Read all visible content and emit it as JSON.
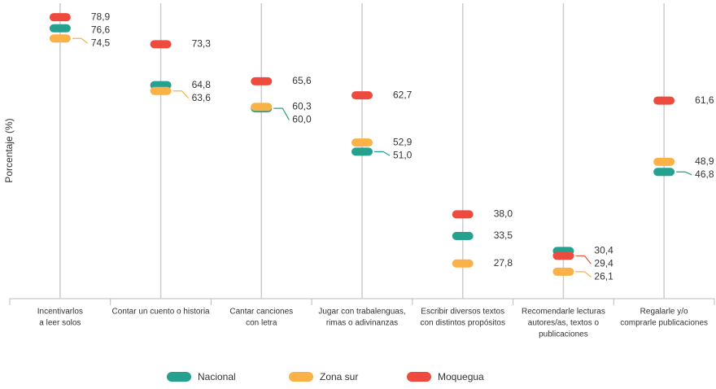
{
  "chart_data": {
    "type": "dotplot",
    "y_label": "Porcentaje (%)",
    "categories": [
      [
        "Incentivarlos",
        "a leer solos"
      ],
      [
        "Contar un cuento o historia"
      ],
      [
        "Cantar canciones",
        "con letra"
      ],
      [
        "Jugar con trabalenguas,",
        "rimas o adivinanzas"
      ],
      [
        "Escribir diversos textos",
        "con distintos propósitos"
      ],
      [
        "Recomendarle lecturas",
        "autores/as, textos o",
        "publicaciones"
      ],
      [
        "Regalarle y/o",
        "comprarle publicaciones"
      ]
    ],
    "series": [
      {
        "name": "Nacional",
        "color": "#26a08f",
        "values": [
          76.6,
          64.8,
          60.0,
          51.0,
          33.5,
          30.4,
          46.8
        ],
        "value_labels": [
          "76,6",
          "64,8",
          "60,0",
          "51,0",
          "33,5",
          "30,4",
          "46,8"
        ]
      },
      {
        "name": "Zona sur",
        "color": "#f9b148",
        "values": [
          74.5,
          63.6,
          60.3,
          52.9,
          27.8,
          26.1,
          48.9
        ],
        "value_labels": [
          "74,5",
          "63,6",
          "60,3",
          "52,9",
          "27,8",
          "26,1",
          "48,9"
        ]
      },
      {
        "name": "Moquegua",
        "color": "#ee4b3e",
        "values": [
          78.9,
          73.3,
          65.6,
          62.7,
          38.0,
          29.4,
          61.6
        ],
        "value_labels": [
          "78,9",
          "73,3",
          "65,6",
          "62,7",
          "38,0",
          "29,4",
          "61,6"
        ]
      }
    ],
    "ylim": [
      20.5,
      81.8
    ]
  }
}
